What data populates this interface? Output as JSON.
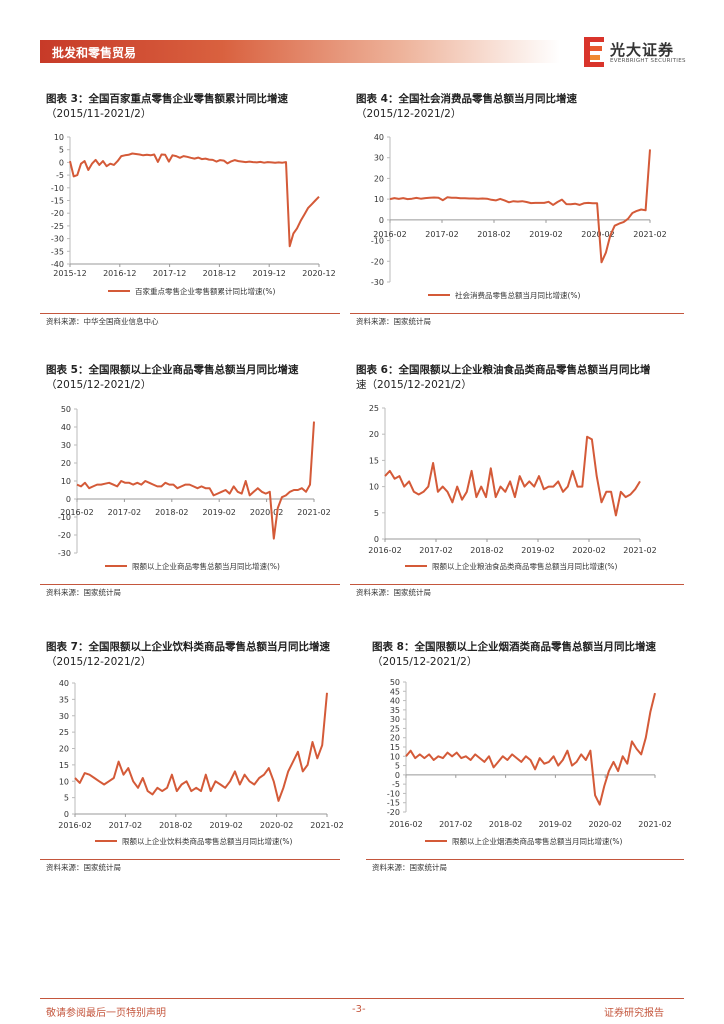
{
  "header": {
    "section_title": "批发和零售贸易",
    "brand_cn": "光大证券",
    "brand_en": "EVERBRIGHT SECURITIES",
    "accent_color": "#c73a28"
  },
  "charts": [
    {
      "id": "c3",
      "title": "图表 3：全国百家重点零售企业零售额累计同比增速",
      "title_line2": "（2015/11-2021/2）",
      "source": "资料来源：中华全国商业信息中心",
      "chart_data": {
        "type": "line",
        "xaxis_position": "bottom",
        "ylim": [
          -40,
          10
        ],
        "yticks": [
          10,
          5,
          0,
          -5,
          -10,
          -15,
          -20,
          -25,
          -30,
          -35,
          -40
        ],
        "x_labels": [
          "2015-12",
          "2016-12",
          "2017-12",
          "2018-12",
          "2019-12",
          "2020-12"
        ],
        "series": [
          {
            "name": "百家重点零售企业零售额累计同比增速(%)",
            "color": "#d45a38",
            "values": [
              0.5,
              -5.5,
              -5,
              -0.5,
              0.5,
              -3,
              -0.5,
              1,
              -1,
              0.5,
              -1.5,
              -0.5,
              -1,
              0.5,
              2.5,
              2.8,
              3,
              3.5,
              3.3,
              3.1,
              2.8,
              3,
              2.8,
              3.1,
              0.2,
              3.1,
              3,
              0.3,
              2.8,
              2.5,
              1.8,
              2.5,
              2.2,
              1.8,
              1.5,
              1.9,
              1.3,
              1.5,
              1.1,
              1,
              0.3,
              0.9,
              0.7,
              -0.4,
              0.4,
              0.9,
              0.5,
              0.3,
              0.1,
              0.3,
              0.1,
              0,
              0.2,
              -0.1,
              0.1,
              0,
              -0.1,
              0,
              -0.1,
              0.1,
              -33,
              -28,
              -26,
              -23,
              -20.5,
              -18,
              -16.5,
              -15,
              -13.5
            ]
          }
        ]
      }
    },
    {
      "id": "c4",
      "title": "图表 4：全国社会消费品零售总额当月同比增速",
      "title_line2": "（2015/12-2021/2）",
      "source": "资料来源：国家统计局",
      "chart_data": {
        "type": "line",
        "xaxis_position": "zero",
        "ylim": [
          -30,
          40
        ],
        "yticks": [
          40,
          30,
          20,
          10,
          0,
          -10,
          -20,
          -30
        ],
        "x_labels": [
          "2016-02",
          "2017-02",
          "2018-02",
          "2019-02",
          "2020-02",
          "2021-02"
        ],
        "series": [
          {
            "name": "社会消费品零售总额当月同比增速(%)",
            "color": "#d45a38",
            "values": [
              10,
              10.5,
              10.1,
              10.5,
              10,
              10.2,
              10.6,
              10.2,
              10.5,
              10.7,
              10.8,
              10.7,
              9.5,
              10.9,
              10.7,
              10.7,
              10.4,
              10.4,
              10.3,
              10.3,
              10.2,
              10.3,
              10.2,
              9.7,
              9.4,
              10.1,
              9.4,
              8.5,
              9,
              8.8,
              9,
              8.6,
              8.1,
              8.2,
              8.2,
              8.2,
              8.7,
              7.2,
              8.6,
              9.8,
              7.6,
              7.5,
              7.8,
              7.2,
              8,
              8.2,
              8,
              8,
              -20.5,
              -15.8,
              -7.5,
              -2.8,
              -1.8,
              -1.1,
              0.5,
              3.3,
              4.3,
              5,
              4.6,
              34
            ]
          }
        ]
      }
    },
    {
      "id": "c5",
      "title": "图表 5：全国限额以上企业商品零售总额当月同比增速",
      "title_line2": "（2015/12-2021/2）",
      "source": "资料来源：国家统计局",
      "chart_data": {
        "type": "line",
        "xaxis_position": "zero",
        "ylim": [
          -30,
          50
        ],
        "yticks": [
          50,
          40,
          30,
          20,
          10,
          0,
          -10,
          -20,
          -30
        ],
        "x_labels": [
          "2016-02",
          "2017-02",
          "2018-02",
          "2019-02",
          "2020-02",
          "2021-02"
        ],
        "series": [
          {
            "name": "限额以上企业商品零售总额当月同比增速(%)",
            "color": "#d45a38",
            "values": [
              8,
              7,
              9,
              6,
              7,
              8,
              8,
              8.5,
              9,
              8,
              7,
              10,
              9,
              9,
              8,
              9,
              8,
              10,
              9,
              8,
              7,
              7,
              9,
              8,
              8,
              6,
              7,
              8,
              8,
              7,
              6,
              7,
              6,
              6,
              2,
              3,
              4,
              5,
              3,
              7,
              4,
              3,
              10,
              2,
              4,
              6,
              4,
              3,
              4,
              -22,
              -5,
              1,
              2,
              4,
              5,
              5,
              6,
              4,
              8,
              43
            ]
          }
        ]
      }
    },
    {
      "id": "c6",
      "title": "图表 6：全国限额以上企业粮油食品类商品零售总额当月同比增",
      "title_line2": "速（2015/12-2021/2）",
      "source": "资料来源：国家统计局",
      "chart_data": {
        "type": "line",
        "xaxis_position": "bottom",
        "ylim": [
          0,
          25
        ],
        "yticks": [
          25,
          20,
          15,
          10,
          5,
          0
        ],
        "x_labels": [
          "2016-02",
          "2017-02",
          "2018-02",
          "2019-02",
          "2020-02",
          "2021-02"
        ],
        "series": [
          {
            "name": "限额以上企业粮油食品类商品零售总额当月同比增速(%)",
            "color": "#d45a38",
            "values": [
              12,
              13,
              11.5,
              12,
              10,
              11,
              9,
              8.5,
              9,
              10,
              14.5,
              9,
              10,
              9,
              7,
              10,
              7.5,
              9,
              13,
              8,
              10,
              8,
              13.5,
              8,
              10,
              9,
              11,
              8,
              12,
              10,
              11,
              10,
              12,
              9.5,
              10,
              10,
              11,
              9,
              10,
              13,
              10,
              10,
              19.5,
              19,
              12,
              7,
              9,
              9,
              4.5,
              9,
              8,
              8.5,
              9.5,
              11
            ]
          }
        ]
      }
    },
    {
      "id": "c7",
      "title": "图表 7：全国限额以上企业饮料类商品零售总额当月同比增速",
      "title_line2": "（2015/12-2021/2）",
      "source": "资料来源：国家统计局",
      "chart_data": {
        "type": "line",
        "xaxis_position": "bottom",
        "ylim": [
          0,
          40
        ],
        "yticks": [
          40,
          35,
          30,
          25,
          20,
          15,
          10,
          5,
          0
        ],
        "x_labels": [
          "2016-02",
          "2017-02",
          "2018-02",
          "2019-02",
          "2020-02",
          "2021-02"
        ],
        "series": [
          {
            "name": "限额以上企业饮料类商品零售总额当月同比增速(%)",
            "color": "#d45a38",
            "values": [
              11,
              9.5,
              12.5,
              12,
              11,
              10,
              9,
              10,
              11,
              16,
              12,
              14,
              10,
              8,
              11,
              7,
              6,
              8,
              7,
              8,
              12,
              7,
              9,
              10,
              7,
              8,
              7,
              12,
              7,
              10,
              9,
              8,
              10,
              13,
              9,
              12,
              10,
              9,
              11,
              12,
              14,
              10,
              4,
              8,
              13,
              16,
              19,
              13,
              15,
              22,
              17,
              21,
              37
            ]
          }
        ]
      }
    },
    {
      "id": "c8",
      "title": "图表 8：全国限额以上企业烟酒类商品零售总额当月同比增速",
      "title_line2": "（2015/12-2021/2）",
      "source": "资料来源：国家统计局",
      "chart_data": {
        "type": "line",
        "xaxis_position": "zero",
        "ylim": [
          -20,
          50
        ],
        "yticks": [
          50,
          45,
          40,
          35,
          30,
          25,
          20,
          15,
          10,
          5,
          0,
          -5,
          -10,
          -15,
          -20
        ],
        "x_labels": [
          "2016-02",
          "2017-02",
          "2018-02",
          "2019-02",
          "2020-02",
          "2021-02"
        ],
        "series": [
          {
            "name": "限额以上企业烟酒类商品零售总额当月同比增速(%)",
            "color": "#d45a38",
            "values": [
              10,
              13,
              9,
              11,
              9,
              11,
              8,
              10,
              9,
              12,
              10,
              12,
              9,
              10,
              8,
              11,
              9,
              7,
              10,
              4,
              7,
              10,
              8,
              11,
              9,
              7,
              10,
              8,
              3,
              9,
              6,
              7,
              10,
              5,
              8,
              13,
              5,
              7,
              11,
              8,
              13,
              -11,
              -16,
              -6,
              2,
              7,
              2,
              10,
              6,
              18,
              14,
              11,
              20,
              34,
              44
            ]
          }
        ]
      }
    }
  ],
  "footer": {
    "left": "敬请参阅最后一页特别声明",
    "page": "-3-",
    "right": "证券研究报告"
  }
}
